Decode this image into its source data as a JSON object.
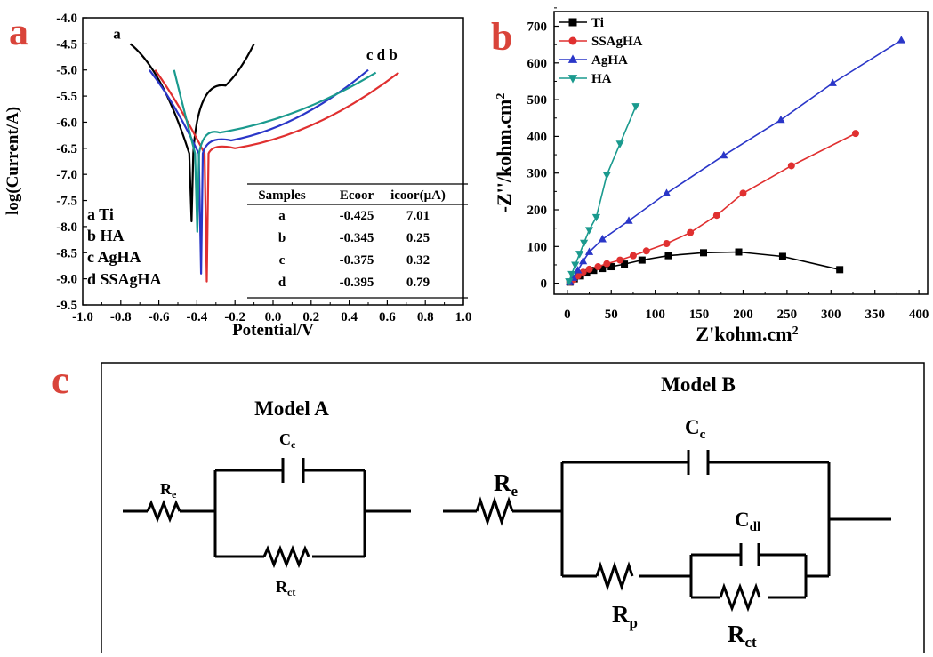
{
  "figure": {
    "panel_letters": [
      "a",
      "b",
      "c"
    ]
  },
  "chart_data": [
    {
      "type": "line",
      "panel": "a",
      "xlabel": "Potential/V",
      "ylabel": "log(Current/A)",
      "xlim": [
        -1.0,
        1.0
      ],
      "ylim": [
        -9.5,
        -4.0
      ],
      "x_ticks": [
        "-1.0",
        "-0.8",
        "-0.6",
        "-0.4",
        "-0.2",
        "0.0",
        "0.2",
        "0.4",
        "0.6",
        "0.8",
        "1.0"
      ],
      "y_ticks": [
        "-4.0",
        "-4.5",
        "-5.0",
        "-5.5",
        "-6.0",
        "-6.5",
        "-7.0",
        "-7.5",
        "-8.0",
        "-8.5",
        "-9.0",
        "-9.5"
      ],
      "legend": [
        "a Ti",
        "b HA",
        "c AgHA",
        "d SSAgHA"
      ],
      "curve_labels": [
        {
          "text": "a",
          "x": -0.84,
          "y": -4.4
        },
        {
          "text": "c d b",
          "x": 0.49,
          "y": -4.8
        }
      ],
      "series": [
        {
          "name": "a",
          "color": "#000000",
          "ecorr": -0.425,
          "icorr_log": -7.9,
          "left_end": [
            -0.75,
            -4.5
          ],
          "right_end": [
            -0.1,
            -4.5
          ],
          "left_knee": [
            -0.58,
            -5.0
          ],
          "right_knee": [
            -0.25,
            -5.3
          ]
        },
        {
          "name": "b",
          "color": "#e03030",
          "ecorr": -0.345,
          "icorr_log": -9.05,
          "left_end": [
            -0.62,
            -5.0
          ],
          "right_end": [
            0.66,
            -5.05
          ],
          "left_knee": [
            -0.5,
            -5.6
          ],
          "right_knee": [
            -0.2,
            -6.5
          ]
        },
        {
          "name": "c",
          "color": "#2a36c8",
          "ecorr": -0.375,
          "icorr_log": -8.9,
          "left_end": [
            -0.65,
            -5.0
          ],
          "right_end": [
            0.5,
            -5.0
          ],
          "left_knee": [
            -0.52,
            -5.6
          ],
          "right_knee": [
            -0.22,
            -6.35
          ]
        },
        {
          "name": "d",
          "color": "#1a9a8e",
          "ecorr": -0.395,
          "icorr_log": -8.1,
          "left_end": [
            -0.52,
            -5.0
          ],
          "right_end": [
            0.54,
            -5.05
          ],
          "left_knee": [
            -0.48,
            -5.6
          ],
          "right_knee": [
            -0.28,
            -6.2
          ]
        }
      ],
      "table": {
        "headers": [
          "Samples",
          "Ecoor",
          "icoor(μA)"
        ],
        "rows": [
          [
            "a",
            "-0.425",
            "7.01"
          ],
          [
            "b",
            "-0.345",
            "0.25"
          ],
          [
            "c",
            "-0.375",
            "0.32"
          ],
          [
            "d",
            "-0.395",
            "0.79"
          ]
        ]
      }
    },
    {
      "type": "line",
      "panel": "b",
      "xlabel": "Z'kohm.cm",
      "xlabel_sup": "2",
      "ylabel": "-Z''/kohm.cm",
      "ylabel_sup": "2",
      "xlim": [
        -15,
        410
      ],
      "ylim": [
        -30,
        740
      ],
      "x_ticks": [
        0,
        50,
        100,
        150,
        200,
        250,
        300,
        350,
        400
      ],
      "y_ticks": [
        0,
        100,
        200,
        300,
        400,
        500,
        600,
        700
      ],
      "series": [
        {
          "name": "Ti",
          "color": "#000000",
          "marker": "square",
          "x": [
            3,
            8,
            15,
            22,
            30,
            40,
            50,
            65,
            85,
            115,
            155,
            195,
            245,
            310
          ],
          "y": [
            3,
            12,
            20,
            28,
            35,
            40,
            45,
            52,
            63,
            75,
            83,
            85,
            73,
            37
          ]
        },
        {
          "name": "SSAgHA",
          "color": "#e03030",
          "marker": "circle",
          "x": [
            3,
            7,
            12,
            18,
            25,
            35,
            45,
            60,
            75,
            90,
            113,
            140,
            170,
            200,
            255,
            328
          ],
          "y": [
            3,
            10,
            20,
            30,
            38,
            45,
            53,
            63,
            75,
            88,
            108,
            138,
            185,
            245,
            320,
            408
          ]
        },
        {
          "name": "AgHA",
          "color": "#2a36c8",
          "marker": "triangle-up",
          "x": [
            3,
            7,
            12,
            18,
            25,
            40,
            70,
            113,
            178,
            243,
            302,
            380
          ],
          "y": [
            3,
            15,
            35,
            60,
            85,
            120,
            170,
            245,
            348,
            445,
            545,
            662
          ]
        },
        {
          "name": "HA",
          "color": "#1a9a8e",
          "marker": "triangle-down",
          "x": [
            2,
            5,
            9,
            14,
            19,
            25,
            33,
            45,
            60,
            78
          ],
          "y": [
            5,
            25,
            50,
            80,
            110,
            145,
            180,
            295,
            380,
            482
          ]
        }
      ]
    }
  ],
  "panel_c": {
    "model_a": {
      "title": "Model A",
      "labels": {
        "re": {
          "main": "R",
          "sub": "e"
        },
        "cc": {
          "main": "C",
          "sub": "c"
        },
        "rct": {
          "main": "R",
          "sub": "ct"
        }
      }
    },
    "model_b": {
      "title": "Model B",
      "labels": {
        "re": {
          "main": "R",
          "sub": "e"
        },
        "cc": {
          "main": "C",
          "sub": "c"
        },
        "cdl": {
          "main": "C",
          "sub": "dl"
        },
        "rp": {
          "main": "R",
          "sub": "p"
        },
        "rct": {
          "main": "R",
          "sub": "ct"
        }
      }
    }
  }
}
